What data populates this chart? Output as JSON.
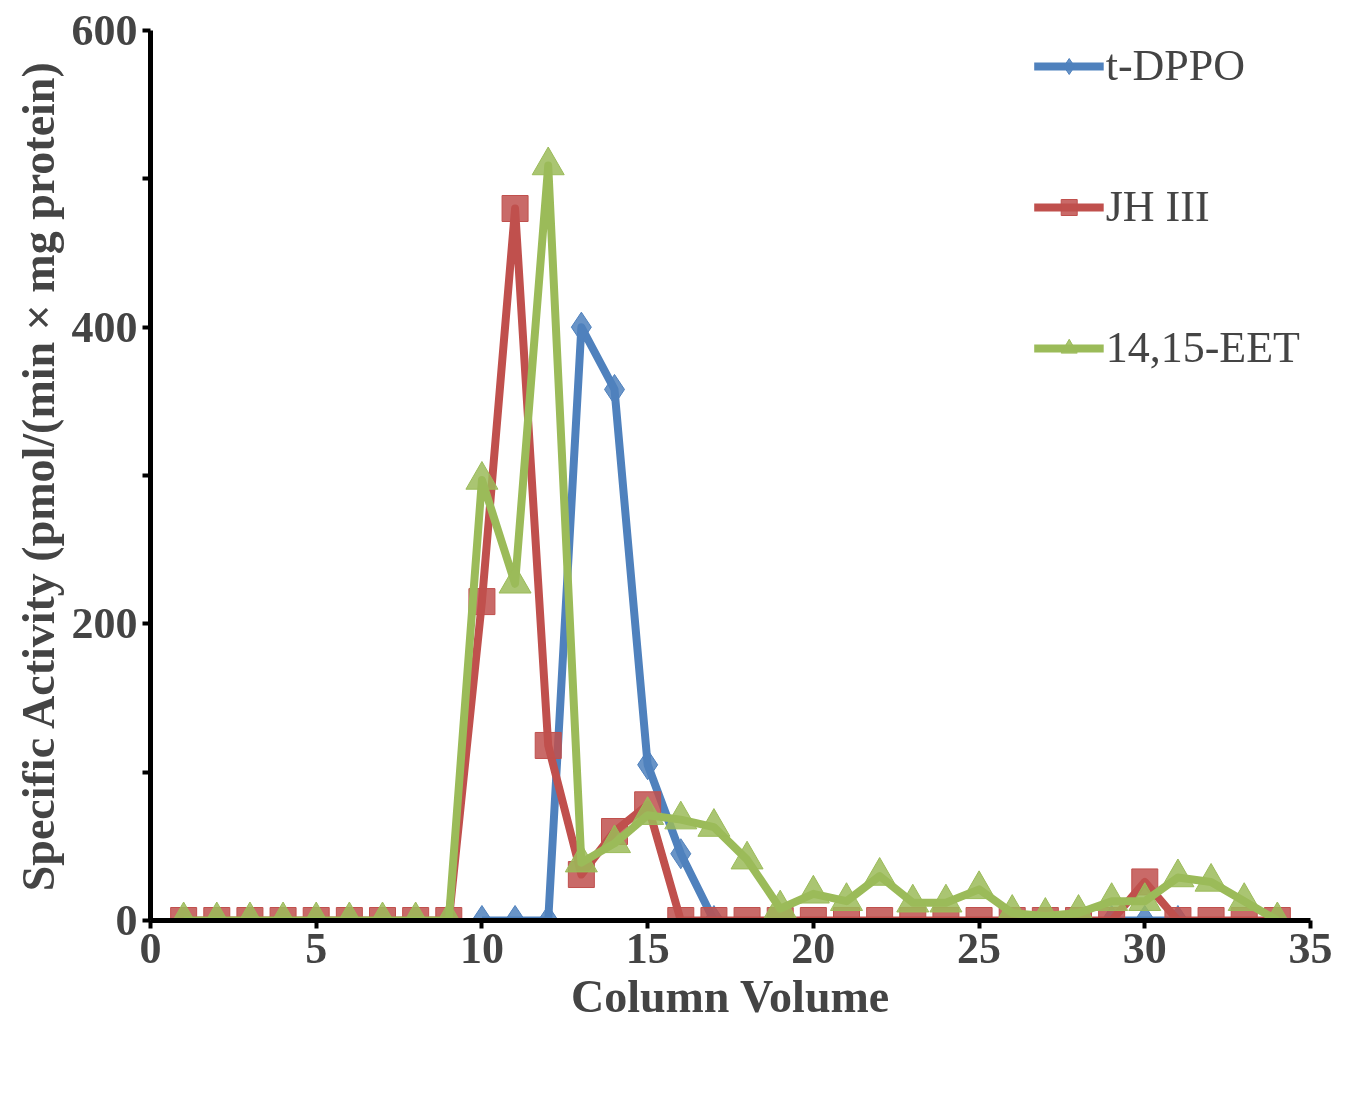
{
  "chart_data": {
    "type": "line",
    "xlabel": "Column Volume",
    "ylabel": "Specific Activity (pmol/(min × mg protein)",
    "xlim": [
      0,
      35
    ],
    "ylim": [
      0,
      600
    ],
    "xticks": [
      0,
      5,
      10,
      15,
      20,
      25,
      30,
      35
    ],
    "yticks": [
      0,
      {
        "value": 100,
        "label": null
      },
      200,
      {
        "value": 300,
        "label": null
      },
      400,
      {
        "value": 500,
        "label": null
      },
      600
    ],
    "grid": false,
    "legend": "top right",
    "line_style": "solid",
    "series": [
      {
        "name": "t-DPPO",
        "color": "#4f81bd",
        "marker": "diamond",
        "x": [
          10,
          11,
          12,
          13,
          14,
          15,
          16,
          17,
          18,
          19,
          20,
          21,
          22,
          23,
          24,
          25,
          26,
          27,
          28,
          29,
          30,
          31
        ],
        "values": [
          0,
          0,
          0,
          400,
          358,
          105,
          45,
          0,
          null,
          null,
          null,
          null,
          null,
          null,
          null,
          null,
          null,
          null,
          null,
          0,
          0,
          0
        ]
      },
      {
        "name": "JH III",
        "color": "#c0504d",
        "marker": "square",
        "x": [
          1,
          2,
          3,
          4,
          5,
          6,
          7,
          8,
          9,
          10,
          11,
          12,
          13,
          14,
          15,
          16,
          17,
          18,
          19,
          20,
          21,
          22,
          23,
          24,
          25,
          26,
          27,
          28,
          29,
          30,
          31,
          32,
          33,
          34
        ],
        "values": [
          0,
          0,
          0,
          0,
          0,
          0,
          0,
          0,
          0,
          215,
          480,
          118,
          31,
          60,
          78,
          0,
          0,
          0,
          0,
          0,
          0,
          0,
          0,
          0,
          0,
          0,
          0,
          0,
          0,
          26,
          0,
          0,
          0,
          0
        ]
      },
      {
        "name": "14,15-EET",
        "color": "#9bbb59",
        "marker": "triangle",
        "x": [
          1,
          2,
          3,
          4,
          5,
          6,
          7,
          8,
          9,
          10,
          11,
          12,
          13,
          14,
          15,
          16,
          17,
          18,
          19,
          20,
          21,
          22,
          23,
          24,
          25,
          26,
          27,
          28,
          29,
          30,
          31,
          32,
          33,
          34
        ],
        "values": [
          0,
          0,
          0,
          0,
          0,
          0,
          0,
          0,
          0,
          297,
          227,
          509,
          39,
          52,
          71,
          68,
          63,
          41,
          8,
          18,
          13,
          30,
          12,
          12,
          21,
          5,
          3,
          5,
          13,
          13,
          29,
          26,
          13,
          0
        ]
      }
    ]
  }
}
